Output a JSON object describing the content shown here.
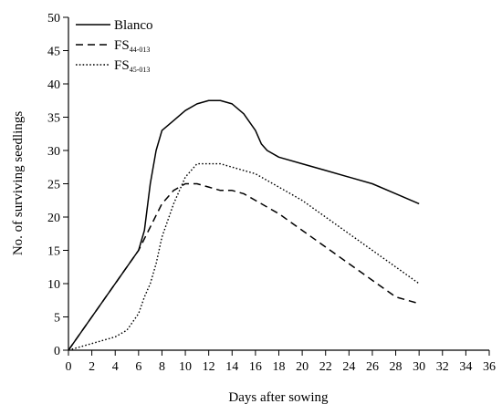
{
  "chart_data": {
    "type": "line",
    "xlabel": "Days after sowing",
    "ylabel": "No. of surviving seedlings",
    "xlim": [
      0,
      36
    ],
    "ylim": [
      0,
      50
    ],
    "xticks": [
      0,
      2,
      4,
      6,
      8,
      10,
      12,
      14,
      16,
      18,
      20,
      22,
      24,
      26,
      28,
      30,
      32,
      34,
      36
    ],
    "yticks": [
      0,
      5,
      10,
      15,
      20,
      25,
      30,
      35,
      40,
      45,
      50
    ],
    "grid": false,
    "legend_position": "top-left",
    "series": [
      {
        "name": "Blanco",
        "label_main": "Blanco",
        "label_sub": "",
        "style": "solid",
        "x": [
          0,
          1,
          2,
          3,
          4,
          5,
          6,
          6.5,
          7,
          7.5,
          8,
          9,
          10,
          11,
          12,
          13,
          14,
          15,
          16,
          16.5,
          17,
          18,
          20,
          22,
          24,
          26,
          28,
          30
        ],
        "y": [
          0,
          2.5,
          5,
          7.5,
          10,
          12.5,
          15,
          18,
          25,
          30,
          33,
          34.5,
          36,
          37,
          37.5,
          37.5,
          37,
          35.5,
          33,
          31,
          30,
          29,
          28,
          27,
          26,
          25,
          23.5,
          22
        ]
      },
      {
        "name": "FS44-013",
        "label_main": "FS",
        "label_sub": "44-013",
        "style": "dashed",
        "x": [
          0,
          2,
          4,
          6,
          7,
          8,
          9,
          10,
          11,
          12,
          13,
          14,
          15,
          16,
          18,
          20,
          22,
          24,
          26,
          28,
          30
        ],
        "y": [
          0,
          5,
          10,
          15,
          18.5,
          22,
          24,
          25,
          25,
          24.5,
          24,
          24,
          23.5,
          22.5,
          20.5,
          18,
          15.5,
          13,
          10.5,
          8,
          7
        ]
      },
      {
        "name": "FS45-013",
        "label_main": "FS",
        "label_sub": "45-013",
        "style": "dotted",
        "x": [
          0,
          2,
          4,
          5,
          6,
          6.5,
          7,
          7.5,
          8,
          9,
          10,
          11,
          12,
          13,
          14,
          15,
          16,
          17,
          18,
          20,
          22,
          24,
          26,
          28,
          30
        ],
        "y": [
          0,
          1,
          2,
          3,
          5.5,
          8,
          10,
          13,
          17,
          22,
          26,
          28,
          28,
          28,
          27.5,
          27,
          26.5,
          25.5,
          24.5,
          22.5,
          20,
          17.5,
          15,
          12.5,
          10
        ]
      }
    ]
  }
}
